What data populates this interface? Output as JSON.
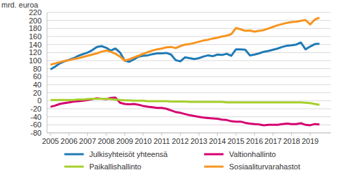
{
  "chart_data": {
    "type": "line",
    "y_label": "mrd. euroa",
    "categories": [
      "2005",
      null,
      null,
      null,
      "2006",
      null,
      null,
      null,
      "2007",
      null,
      null,
      null,
      "2008",
      null,
      null,
      null,
      "2009",
      null,
      null,
      null,
      "2010",
      null,
      null,
      null,
      "2011",
      null,
      null,
      null,
      "2012",
      null,
      null,
      null,
      "2013",
      null,
      null,
      null,
      "2014",
      null,
      null,
      null,
      "2015",
      null,
      null,
      null,
      "2016",
      null,
      null,
      null,
      "2017",
      null,
      null,
      null,
      "2018",
      null,
      null,
      null,
      "2019",
      null,
      null
    ],
    "series": [
      {
        "name": "Julkisyhteisöt yhteensä",
        "color": "#1f7ab5",
        "values": [
          78,
          85,
          93,
          98,
          102,
          106,
          112,
          116,
          120,
          126,
          134,
          136,
          132,
          125,
          130,
          120,
          100,
          97,
          103,
          110,
          112,
          113,
          116,
          118,
          118,
          119,
          115,
          101,
          98,
          108,
          106,
          104,
          106,
          110,
          113,
          111,
          115,
          114,
          117,
          112,
          128,
          128,
          127,
          113,
          115,
          118,
          122,
          124,
          127,
          130,
          134,
          137,
          138,
          140,
          145,
          128,
          135,
          141,
          142
        ]
      },
      {
        "name": "Valtionhallinto",
        "color": "#d6006f",
        "values": [
          -15,
          -12,
          -8,
          -6,
          -4,
          -2,
          -1,
          0,
          2,
          4,
          6,
          5,
          4,
          7,
          8,
          -5,
          -8,
          -9,
          -8,
          -10,
          -13,
          -15,
          -16,
          -18,
          -18,
          -20,
          -24,
          -28,
          -30,
          -33,
          -36,
          -38,
          -40,
          -42,
          -43,
          -44,
          -45,
          -47,
          -48,
          -51,
          -52,
          -52,
          -55,
          -57,
          -58,
          -59,
          -61,
          -60,
          -60,
          -60,
          -58,
          -57,
          -58,
          -58,
          -56,
          -60,
          -61,
          -58,
          -59
        ]
      },
      {
        "name": "Paikallishallinto",
        "color": "#a6cf2a",
        "values": [
          2,
          2,
          2,
          2,
          2,
          2,
          3,
          3,
          4,
          5,
          5,
          5,
          5,
          4,
          3,
          2,
          1,
          1,
          0,
          0,
          0,
          -1,
          -1,
          -1,
          -1,
          -1,
          -2,
          -2,
          -2,
          -2,
          -3,
          -3,
          -3,
          -3,
          -3,
          -3,
          -3,
          -3,
          -4,
          -4,
          -4,
          -4,
          -4,
          -4,
          -4,
          -4,
          -4,
          -4,
          -4,
          -4,
          -4,
          -4,
          -4,
          -4,
          -4,
          -5,
          -6,
          -8,
          -10
        ]
      },
      {
        "name": "Sosiaaliturvarahastot",
        "color": "#f7941e",
        "values": [
          90,
          93,
          96,
          99,
          101,
          104,
          106,
          109,
          112,
          115,
          118,
          122,
          125,
          122,
          117,
          110,
          100,
          103,
          108,
          112,
          117,
          121,
          125,
          128,
          130,
          133,
          134,
          131,
          136,
          140,
          141,
          144,
          147,
          150,
          152,
          155,
          157,
          160,
          162,
          166,
          181,
          178,
          174,
          175,
          172,
          174,
          176,
          180,
          184,
          188,
          191,
          194,
          196,
          197,
          199,
          201,
          190,
          202,
          207
        ]
      }
    ],
    "ylim": [
      -80,
      220
    ],
    "yticks": [
      -80,
      -60,
      -40,
      -20,
      0,
      20,
      40,
      60,
      80,
      100,
      120,
      140,
      160,
      180,
      200,
      220
    ],
    "grid": true,
    "legend": "bottom"
  }
}
